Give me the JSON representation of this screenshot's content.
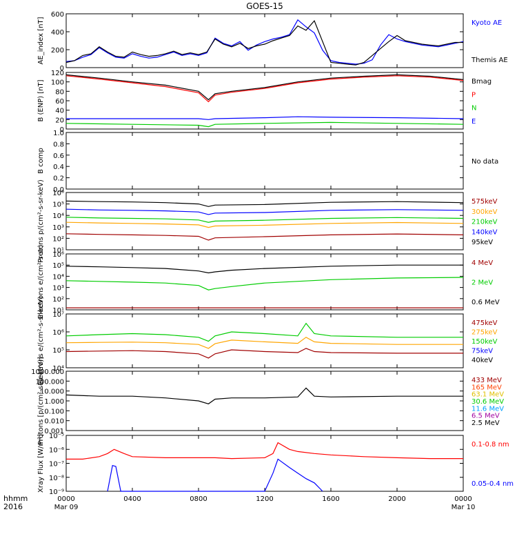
{
  "title": "GOES-15",
  "x_axis": {
    "corner_top": "hhmm",
    "corner_bottom": "2016",
    "ticks": [
      {
        "time": "0000",
        "date": "Mar 09"
      },
      {
        "time": "0400",
        "date": ""
      },
      {
        "time": "0800",
        "date": ""
      },
      {
        "time": "1200",
        "date": ""
      },
      {
        "time": "1600",
        "date": ""
      },
      {
        "time": "2000",
        "date": ""
      },
      {
        "time": "0000",
        "date": "Mar 10"
      }
    ]
  },
  "colors": {
    "black": "#000000",
    "blue": "#0000ff",
    "red": "#ff0000",
    "green": "#00cc00",
    "orange": "#ffa500",
    "darkred": "#a00000",
    "cyan": "#00a0ff",
    "yellow": "#e0c000",
    "midgreen": "#00ff60",
    "orangered": "#ff4000",
    "darkgreen": "#008000",
    "purple": "#a000a0"
  },
  "chart_data": [
    {
      "type": "line",
      "ylabel": "AE_index [nT]",
      "ylim": [
        0,
        620
      ],
      "yticks": [
        "0",
        "200",
        "400",
        "600"
      ],
      "legend": [
        {
          "label": "Kyoto AE",
          "color": "#0000ff"
        },
        {
          "label": "Themis AE",
          "color": "#000000"
        }
      ],
      "series": [
        {
          "name": "Kyoto AE",
          "color": "#0000ff",
          "x": [
            0,
            0.5,
            1,
            1.5,
            2,
            2.5,
            3,
            3.5,
            4,
            4.5,
            5,
            5.5,
            6,
            6.5,
            7,
            7.5,
            8,
            8.5,
            9,
            9.5,
            10,
            10.5,
            11,
            11.5,
            12,
            12.5,
            13,
            13.5,
            14,
            14.5,
            15,
            15.5,
            16,
            16.5,
            17,
            17.5,
            18,
            18.5,
            19,
            19.5,
            20,
            20.5,
            21,
            21.5,
            22,
            22.5,
            23,
            23.5,
            24
          ],
          "y": [
            70,
            80,
            120,
            150,
            230,
            170,
            120,
            110,
            160,
            130,
            110,
            120,
            150,
            180,
            140,
            160,
            140,
            170,
            340,
            280,
            250,
            300,
            200,
            260,
            300,
            330,
            350,
            380,
            550,
            470,
            400,
            200,
            80,
            60,
            50,
            40,
            50,
            90,
            260,
            380,
            330,
            300,
            280,
            260,
            250,
            240,
            260,
            280,
            300
          ]
        },
        {
          "name": "Themis AE",
          "color": "#000000",
          "x": [
            0,
            0.5,
            1,
            1.5,
            2,
            2.5,
            3,
            3.5,
            4,
            4.5,
            5,
            5.5,
            6,
            6.5,
            7,
            7.5,
            8,
            8.5,
            9,
            9.5,
            10,
            10.5,
            11,
            11.5,
            12,
            12.5,
            13,
            13.5,
            14,
            14.5,
            15,
            15.5,
            16,
            16.5,
            17,
            17.5,
            18,
            18.5,
            19,
            19.5,
            20,
            20.5,
            21,
            21.5,
            22,
            22.5,
            23,
            23.5,
            24
          ],
          "y": [
            60,
            80,
            140,
            160,
            240,
            180,
            130,
            120,
            180,
            150,
            130,
            140,
            160,
            190,
            150,
            170,
            150,
            180,
            330,
            270,
            240,
            280,
            220,
            250,
            270,
            310,
            340,
            370,
            480,
            430,
            540,
            300,
            60,
            50,
            40,
            30,
            60,
            140,
            220,
            300,
            370,
            310,
            290,
            270,
            260,
            250,
            270,
            290,
            290
          ]
        }
      ]
    },
    {
      "type": "line",
      "ylabel": "B (ENP) [nT]",
      "ylim": [
        0,
        120
      ],
      "yticks": [
        "0",
        "20",
        "40",
        "60",
        "80",
        "100",
        "120"
      ],
      "legend": [
        {
          "label": "Bmag",
          "color": "#000000"
        },
        {
          "label": "P",
          "color": "#ff0000"
        },
        {
          "label": "N",
          "color": "#00cc00"
        },
        {
          "label": "E",
          "color": "#0000ff"
        }
      ],
      "series": [
        {
          "name": "Bmag",
          "color": "#000000",
          "x": [
            0,
            2,
            4,
            6,
            8,
            8.6,
            9,
            10,
            12,
            14,
            16,
            18,
            20,
            22,
            24
          ],
          "y": [
            115,
            108,
            100,
            93,
            80,
            62,
            75,
            80,
            88,
            100,
            108,
            112,
            115,
            112,
            105
          ]
        },
        {
          "name": "P",
          "color": "#ff0000",
          "x": [
            0,
            2,
            4,
            6,
            8,
            8.6,
            9,
            10,
            12,
            14,
            16,
            18,
            20,
            22,
            24
          ],
          "y": [
            113,
            106,
            98,
            90,
            77,
            58,
            72,
            78,
            86,
            98,
            106,
            110,
            113,
            110,
            103
          ]
        },
        {
          "name": "N",
          "color": "#00cc00",
          "x": [
            0,
            4,
            8,
            8.6,
            9,
            12,
            16,
            20,
            24
          ],
          "y": [
            12,
            10,
            8,
            5,
            10,
            12,
            14,
            12,
            10
          ]
        },
        {
          "name": "E",
          "color": "#0000ff",
          "x": [
            0,
            4,
            8,
            8.6,
            9,
            12,
            14,
            16,
            20,
            24
          ],
          "y": [
            22,
            22,
            22,
            20,
            22,
            24,
            26,
            25,
            24,
            22
          ]
        }
      ]
    },
    {
      "type": "line",
      "ylabel": "B comp",
      "ylim": [
        0,
        1
      ],
      "yticks": [
        "0.0",
        "0.2",
        "0.4",
        "0.6",
        "0.8",
        "1.0"
      ],
      "legend": [],
      "annotation": "No data",
      "series": []
    },
    {
      "type": "line",
      "ylabel": "Protons p/(cm²-s-sr-keV)",
      "yscale": "log",
      "ylim": [
        10,
        1000000
      ],
      "yticks": [
        "10¹",
        "10²",
        "10³",
        "10⁴",
        "10⁵",
        "10⁶"
      ],
      "legend": [
        {
          "label": "575keV",
          "color": "#a00000"
        },
        {
          "label": "300keV",
          "color": "#ffa500"
        },
        {
          "label": "210keV",
          "color": "#00cc00"
        },
        {
          "label": "140keV",
          "color": "#0000ff"
        },
        {
          "label": "95keV",
          "color": "#000000"
        }
      ],
      "series": [
        {
          "name": "95keV",
          "color": "#000000",
          "x": [
            0,
            2,
            4,
            6,
            8,
            8.6,
            9,
            12,
            16,
            20,
            24
          ],
          "y": [
            180000,
            160000,
            150000,
            130000,
            100000,
            60000,
            80000,
            90000,
            140000,
            160000,
            130000
          ]
        },
        {
          "name": "140keV",
          "color": "#0000ff",
          "x": [
            0,
            2,
            4,
            6,
            8,
            8.6,
            9,
            12,
            16,
            20,
            24
          ],
          "y": [
            35000,
            30000,
            28000,
            25000,
            20000,
            12000,
            16000,
            18000,
            28000,
            32000,
            28000
          ]
        },
        {
          "name": "210keV",
          "color": "#00cc00",
          "x": [
            0,
            2,
            4,
            6,
            8,
            8.6,
            9,
            12,
            16,
            20,
            24
          ],
          "y": [
            7000,
            6000,
            5500,
            5000,
            4000,
            2500,
            3200,
            3800,
            5500,
            6500,
            5500
          ]
        },
        {
          "name": "300keV",
          "color": "#ffa500",
          "x": [
            0,
            2,
            4,
            6,
            8,
            8.6,
            9,
            12,
            16,
            20,
            24
          ],
          "y": [
            2500,
            2200,
            2000,
            1800,
            1500,
            900,
            1200,
            1400,
            2000,
            2400,
            2000
          ]
        },
        {
          "name": "575keV",
          "color": "#a00000",
          "x": [
            0,
            2,
            4,
            6,
            8,
            8.6,
            9,
            12,
            16,
            20,
            24
          ],
          "y": [
            250,
            220,
            200,
            180,
            150,
            70,
            110,
            140,
            200,
            240,
            200
          ]
        }
      ]
    },
    {
      "type": "line",
      "ylabel": "Electrons e/(cm²-s-sr)",
      "yscale": "log",
      "ylim": [
        10,
        1000000
      ],
      "yticks": [
        "10¹",
        "10²",
        "10³",
        "10⁴",
        "10⁵",
        "10⁶"
      ],
      "legend": [
        {
          "label": "4 MeV",
          "color": "#a00000"
        },
        {
          "label": "2 MeV",
          "color": "#00cc00"
        },
        {
          "label": "0.6 MeV",
          "color": "#000000"
        }
      ],
      "series": [
        {
          "name": "0.6 MeV",
          "color": "#000000",
          "x": [
            0,
            2,
            4,
            6,
            8,
            8.6,
            9,
            10,
            12,
            16,
            20,
            24
          ],
          "y": [
            80000,
            70000,
            60000,
            50000,
            30000,
            20000,
            25000,
            35000,
            50000,
            80000,
            100000,
            100000
          ]
        },
        {
          "name": "2 MeV",
          "color": "#00cc00",
          "x": [
            0,
            2,
            4,
            6,
            8,
            8.6,
            9,
            10,
            12,
            16,
            20,
            24
          ],
          "y": [
            4000,
            3500,
            3000,
            2500,
            1500,
            600,
            800,
            1200,
            2500,
            5000,
            7000,
            8000
          ]
        },
        {
          "name": "4 MeV",
          "color": "#a00000",
          "x": [
            0,
            24
          ],
          "y": [
            15,
            15
          ]
        }
      ]
    },
    {
      "type": "line",
      "ylabel": "Electrons e/(cm²-s-sr-keV)",
      "yscale": "log",
      "ylim": [
        10000,
        10000000
      ],
      "yticks": [
        "10⁴",
        "10⁵",
        "10⁶",
        "10⁷"
      ],
      "legend": [
        {
          "label": "475keV",
          "color": "#a00000"
        },
        {
          "label": "275keV",
          "color": "#ffa500"
        },
        {
          "label": "150keV",
          "color": "#00cc00"
        },
        {
          "label": "75keV",
          "color": "#0000ff"
        },
        {
          "label": "40keV",
          "color": "#000000"
        }
      ],
      "series": [
        {
          "name": "150keV",
          "color": "#00cc00",
          "x": [
            0,
            2,
            4,
            6,
            8,
            8.6,
            9,
            10,
            12,
            14,
            14.5,
            15,
            16,
            20,
            24
          ],
          "y": [
            600000,
            700000,
            800000,
            700000,
            500000,
            300000,
            600000,
            1000000,
            800000,
            600000,
            3000000,
            800000,
            600000,
            500000,
            500000
          ]
        },
        {
          "name": "275keV",
          "color": "#ffa500",
          "x": [
            0,
            2,
            4,
            6,
            8,
            8.6,
            9,
            10,
            12,
            14,
            14.5,
            15,
            16,
            20,
            24
          ],
          "y": [
            250000,
            260000,
            270000,
            250000,
            200000,
            120000,
            220000,
            350000,
            280000,
            230000,
            500000,
            280000,
            230000,
            200000,
            200000
          ]
        },
        {
          "name": "475keV",
          "color": "#a00000",
          "x": [
            0,
            2,
            4,
            6,
            8,
            8.6,
            9,
            10,
            12,
            14,
            14.5,
            15,
            16,
            20,
            24
          ],
          "y": [
            80000,
            85000,
            90000,
            80000,
            60000,
            35000,
            60000,
            100000,
            80000,
            70000,
            120000,
            80000,
            70000,
            65000,
            65000
          ]
        }
      ]
    },
    {
      "type": "line",
      "ylabel": "Protons [p/(cm²-s-sr-keV)]",
      "yscale": "log",
      "ylim": [
        0.001,
        1000
      ],
      "yticks": [
        "0.001",
        "0.010",
        "0.100",
        "1.000",
        "10.000",
        "100.000",
        "1000.000"
      ],
      "legend": [
        {
          "label": "433 MeV",
          "color": "#a00000"
        },
        {
          "label": "165 MeV",
          "color": "#ff4000"
        },
        {
          "label": "63.1 MeV",
          "color": "#e0c000"
        },
        {
          "label": "30.6 MeV",
          "color": "#00cc00"
        },
        {
          "label": "11.6 MeV",
          "color": "#00a0ff"
        },
        {
          "label": "6.5 MeV",
          "color": "#a000a0"
        },
        {
          "label": "2.5 MeV",
          "color": "#000000"
        }
      ],
      "series": [
        {
          "name": "2.5 MeV",
          "color": "#000000",
          "x": [
            0,
            2,
            4,
            6,
            8,
            8.6,
            9,
            10,
            12,
            14,
            14.5,
            15,
            16,
            20,
            24
          ],
          "y": [
            4,
            3,
            3,
            2,
            1,
            0.5,
            1.5,
            2,
            2,
            2.5,
            20,
            3,
            2.5,
            3,
            3
          ]
        }
      ]
    },
    {
      "type": "line",
      "ylabel": "Xray Flux [W/m²]",
      "yscale": "log",
      "ylim": [
        1e-09,
        1e-05
      ],
      "yticks": [
        "10⁻⁹",
        "10⁻⁸",
        "10⁻⁷",
        "10⁻⁶",
        "10⁻⁵"
      ],
      "legend": [
        {
          "label": "0.1-0.8 nm",
          "color": "#ff0000"
        },
        {
          "label": "0.05-0.4 nm",
          "color": "#0000ff"
        }
      ],
      "series": [
        {
          "name": "0.1-0.8 nm",
          "color": "#ff0000",
          "x": [
            0,
            1,
            2,
            2.5,
            2.9,
            3.5,
            4,
            6,
            8,
            9,
            10,
            12,
            12.5,
            12.8,
            13.5,
            14,
            15,
            16,
            18,
            20,
            22,
            24
          ],
          "y": [
            2e-07,
            2e-07,
            3e-07,
            5e-07,
            1e-06,
            5e-07,
            3e-07,
            2.5e-07,
            2.5e-07,
            2.5e-07,
            2.2e-07,
            2.5e-07,
            5e-07,
            3e-06,
            1e-06,
            7e-07,
            5e-07,
            4e-07,
            3e-07,
            2.5e-07,
            2.2e-07,
            2.2e-07
          ]
        },
        {
          "name": "0.05-0.4 nm",
          "color": "#0000ff",
          "x": [
            2.5,
            2.8,
            3,
            3.3,
            12,
            12.5,
            12.8,
            13.5,
            14,
            14.5,
            15,
            15.5
          ],
          "y": [
            1e-09,
            7e-08,
            6e-08,
            1e-09,
            1e-09,
            2e-08,
            2e-07,
            5e-08,
            2e-08,
            8e-09,
            4e-09,
            1e-09
          ]
        }
      ]
    }
  ]
}
